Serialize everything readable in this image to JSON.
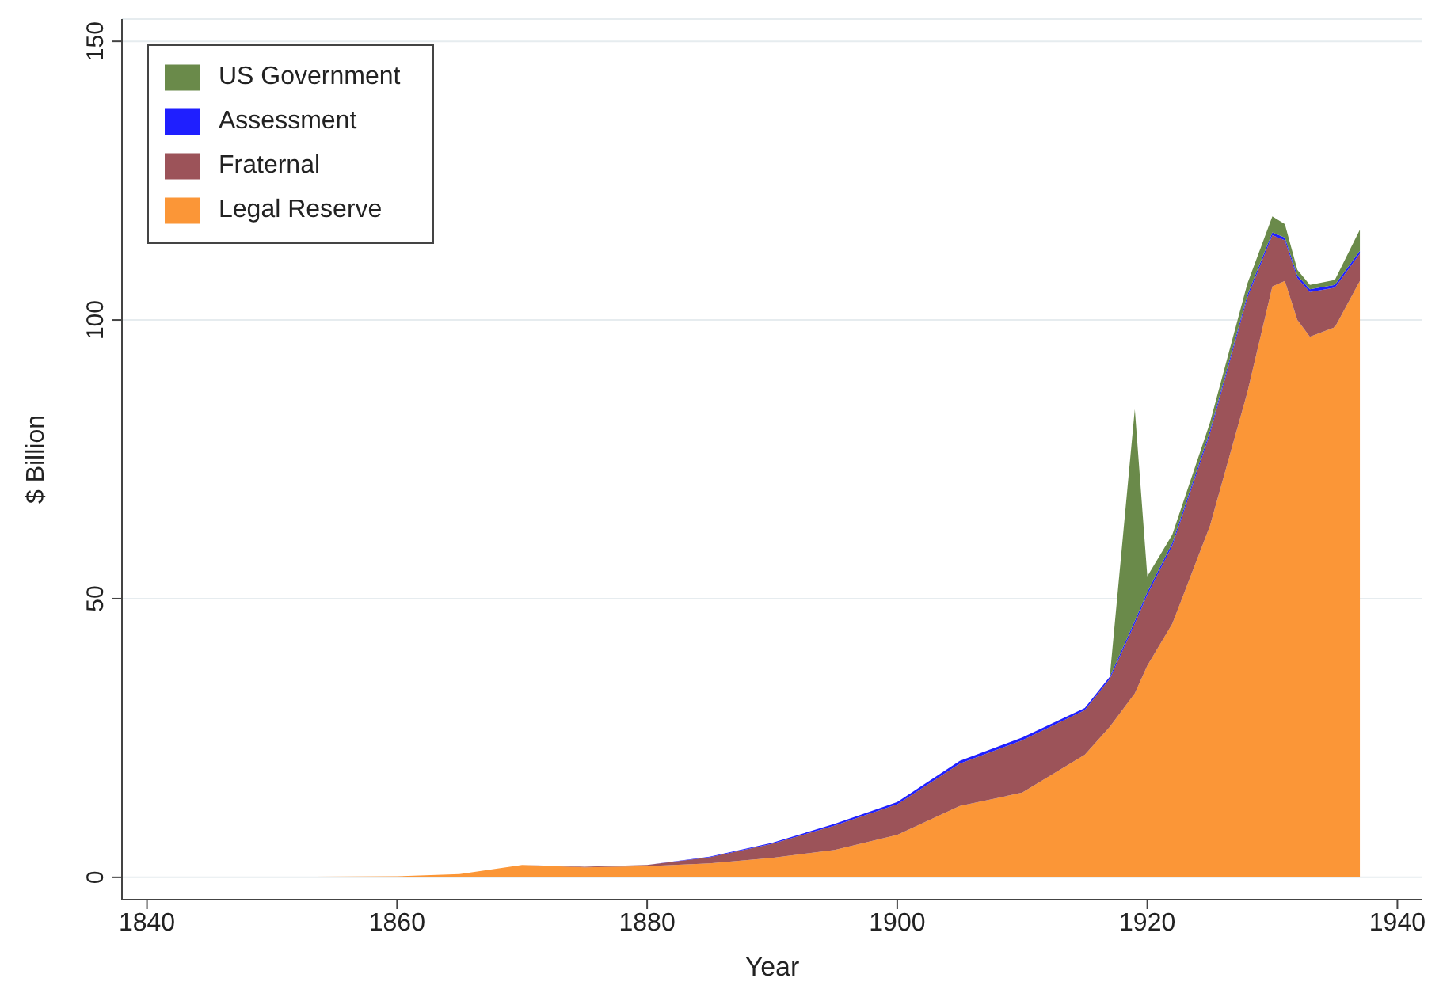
{
  "chart_data": {
    "type": "area",
    "stacked": true,
    "xlabel": "Year",
    "ylabel": "$ Billion",
    "x": [
      1842,
      1850,
      1860,
      1865,
      1870,
      1875,
      1880,
      1885,
      1890,
      1895,
      1900,
      1905,
      1910,
      1915,
      1917,
      1919,
      1920,
      1922,
      1925,
      1928,
      1930,
      1931,
      1932,
      1933,
      1935,
      1937
    ],
    "series": [
      {
        "name": "Legal Reserve",
        "color": "#fb9637",
        "values": [
          0.1,
          0.1,
          0.2,
          0.6,
          2.2,
          1.8,
          2.0,
          2.5,
          3.5,
          4.9,
          7.6,
          12.8,
          15.2,
          22,
          27,
          33,
          38,
          45.5,
          63,
          87,
          106,
          107,
          100,
          97,
          98.7,
          107
        ]
      },
      {
        "name": "Fraternal",
        "color": "#9c5359",
        "values": [
          0,
          0,
          0,
          0,
          0,
          0.1,
          0.2,
          1.1,
          2.5,
          4.4,
          5.5,
          7.6,
          9.4,
          8,
          8.6,
          12.5,
          12.7,
          14,
          16.5,
          17,
          9.2,
          7.3,
          7.5,
          8,
          7.1,
          4.9
        ]
      },
      {
        "name": "Assessment",
        "color": "#1f1fff",
        "values": [
          0,
          0,
          0,
          0,
          0,
          0,
          0,
          0.1,
          0.2,
          0.3,
          0.4,
          0.5,
          0.5,
          0.4,
          0.4,
          0.5,
          0.5,
          0.5,
          0.5,
          0.5,
          0.5,
          0.5,
          0.5,
          0.5,
          0.5,
          0.5
        ]
      },
      {
        "name": "US Government",
        "color": "#6a8a4a",
        "values": [
          0,
          0,
          0,
          0,
          0,
          0,
          0,
          0,
          0,
          0,
          0,
          0,
          0,
          0,
          0,
          38,
          2.8,
          1.5,
          1.5,
          2,
          2.9,
          2.4,
          1,
          0.8,
          0.9,
          3.8
        ]
      }
    ],
    "xlim": [
      1838,
      1942
    ],
    "xticks": [
      1840,
      1860,
      1880,
      1900,
      1920,
      1940
    ],
    "ylim": [
      -4,
      154
    ],
    "yticks": [
      0,
      50,
      100,
      150
    ],
    "grid": "y",
    "legend": "top left"
  }
}
